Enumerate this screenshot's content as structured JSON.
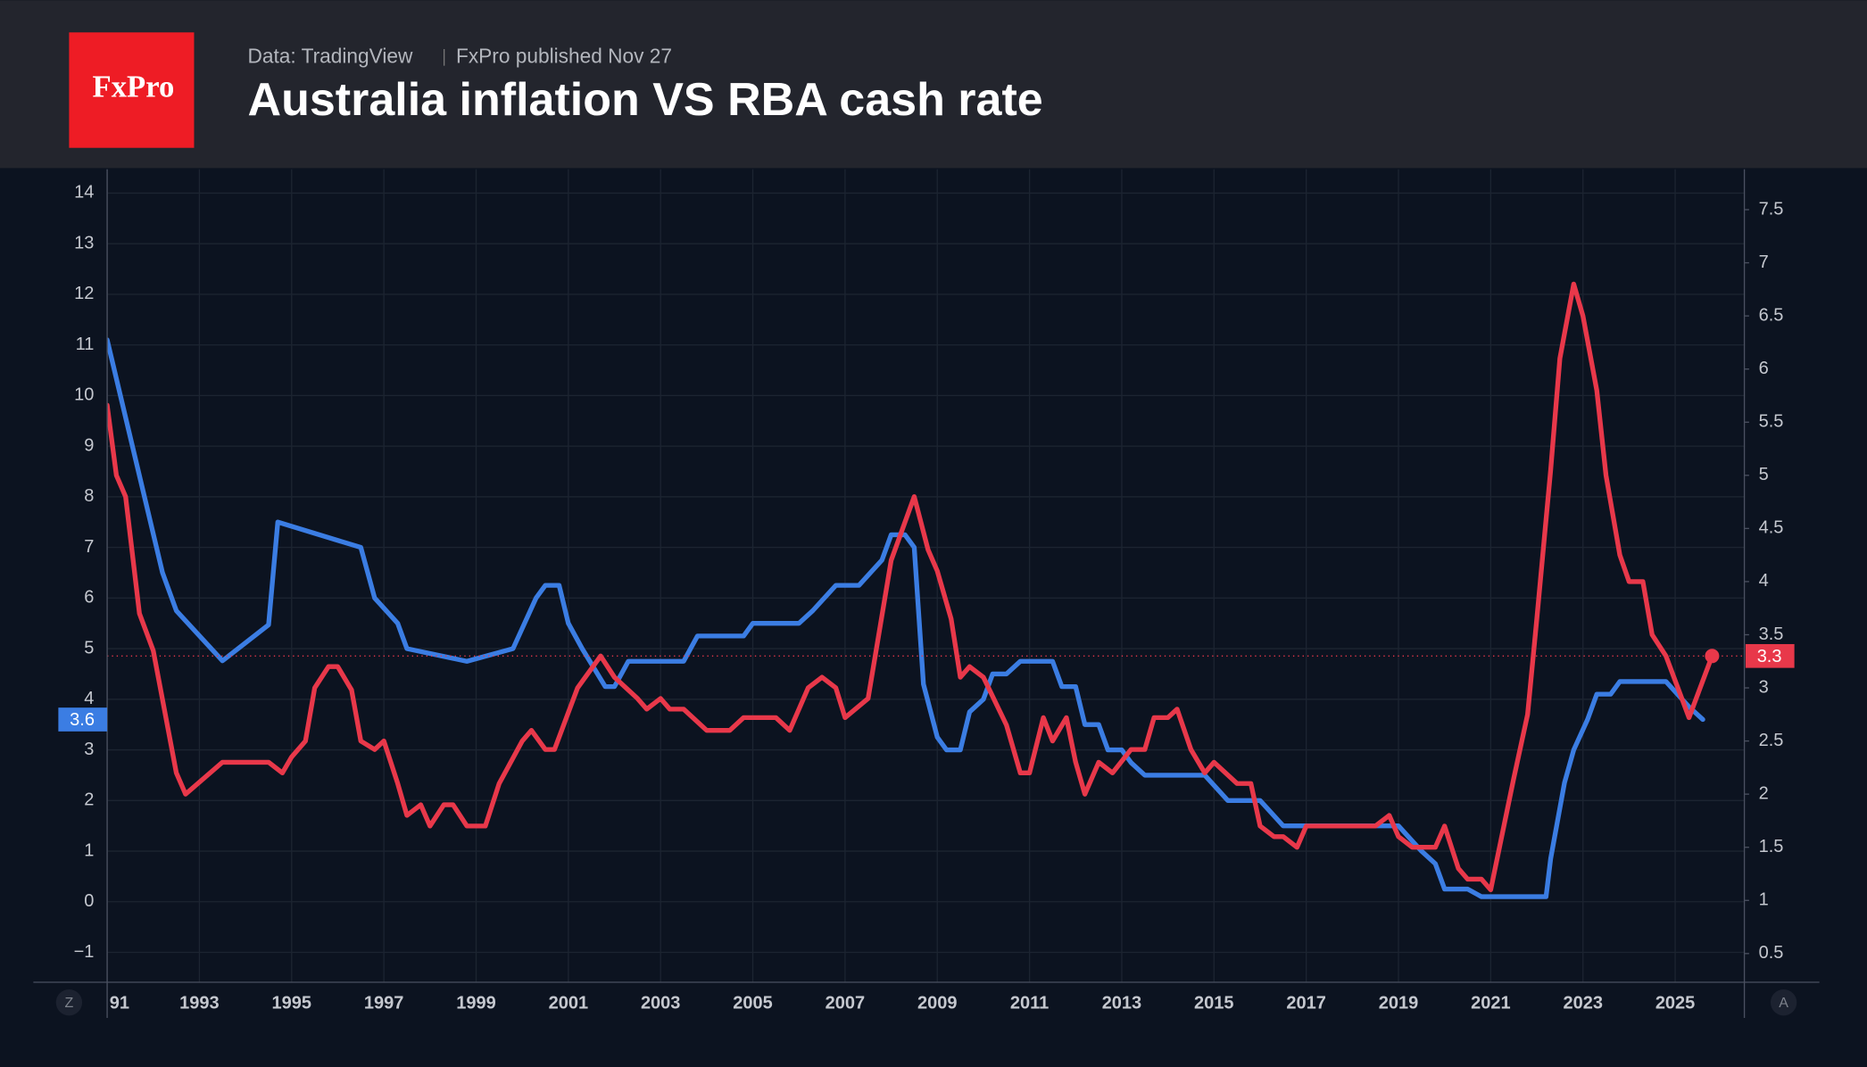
{
  "chart_data": {
    "type": "line",
    "logo": "FxPro",
    "source": "Data: TradingView",
    "subtitle": "FxPro published Nov 27",
    "title": "Australia inflation VS RBA cash rate",
    "scale_buttons": [
      "Z",
      "A"
    ],
    "grid": true,
    "xlim": [
      1991,
      2026.5
    ],
    "xticks": [
      {
        "value": 1991,
        "label": "91"
      },
      1993,
      1995,
      1997,
      1999,
      2001,
      2003,
      2005,
      2007,
      2009,
      2011,
      2013,
      2015,
      2017,
      2019,
      2021,
      2023,
      2025
    ],
    "ylim": [
      -1.59,
      14.47
    ],
    "yticks": [
      {
        "value": -1,
        "label": "−1"
      },
      0,
      1,
      2,
      3,
      4,
      5,
      6,
      7,
      8,
      9,
      10,
      11,
      12,
      13,
      14
    ],
    "y2lim": [
      0.23,
      7.88
    ],
    "y2ticks": [
      0.5,
      1,
      1.5,
      2,
      2.5,
      3,
      3.5,
      4,
      4.5,
      5,
      5.5,
      6,
      6.5,
      7,
      7.5
    ],
    "series": [
      {
        "color": "#3b7de3",
        "x": [
          1991.0,
          1992.2,
          1992.5,
          1993.5,
          1994.5,
          1994.7,
          1996.5,
          1996.8,
          1997.3,
          1997.5,
          1998.8,
          1999.8,
          2000.3,
          2000.5,
          2000.8,
          2001.0,
          2001.3,
          2001.8,
          2002.0,
          2002.3,
          2003.5,
          2003.8,
          2004.8,
          2005.0,
          2006.0,
          2006.3,
          2006.8,
          2007.3,
          2007.8,
          2008.0,
          2008.3,
          2008.5,
          2008.7,
          2009.0,
          2009.2,
          2009.5,
          2009.7,
          2010.0,
          2010.2,
          2010.5,
          2010.8,
          2011.5,
          2011.7,
          2012.0,
          2012.2,
          2012.5,
          2012.7,
          2013.0,
          2013.2,
          2013.5,
          2014.8,
          2015.3,
          2016.0,
          2016.5,
          2019.0,
          2019.5,
          2019.8,
          2020.0,
          2020.5,
          2020.8,
          2022.2,
          2022.3,
          2022.6,
          2022.8,
          2023.1,
          2023.3,
          2023.6,
          2023.8,
          2024.8,
          2025.3,
          2025.6
        ],
        "values": [
          11.1,
          6.5,
          5.75,
          4.76,
          5.47,
          7.5,
          7.0,
          6.0,
          5.5,
          5.0,
          4.75,
          5.0,
          6.0,
          6.25,
          6.25,
          5.5,
          5.0,
          4.25,
          4.25,
          4.75,
          4.75,
          5.25,
          5.25,
          5.5,
          5.5,
          5.75,
          6.25,
          6.25,
          6.75,
          7.25,
          7.25,
          7.0,
          4.3,
          3.25,
          3.0,
          3.0,
          3.75,
          4.0,
          4.5,
          4.5,
          4.75,
          4.75,
          4.25,
          4.25,
          3.5,
          3.5,
          3.0,
          3.0,
          2.75,
          2.5,
          2.5,
          2.0,
          2.0,
          1.5,
          1.5,
          1.0,
          0.75,
          0.25,
          0.25,
          0.1,
          0.1,
          0.85,
          2.35,
          3.0,
          3.6,
          4.1,
          4.1,
          4.35,
          4.35,
          3.85,
          3.6
        ]
      },
      {
        "color": "#e8384a",
        "axis": "y2",
        "x": [
          1991.0,
          1991.2,
          1991.4,
          1991.7,
          1992.0,
          1992.5,
          1992.7,
          1993.5,
          1994.5,
          1994.8,
          1995.0,
          1995.3,
          1995.5,
          1995.8,
          1996.0,
          1996.3,
          1996.5,
          1996.8,
          1997.0,
          1997.3,
          1997.5,
          1997.8,
          1998.0,
          1998.3,
          1998.5,
          1998.8,
          1999.2,
          1999.5,
          2000.0,
          2000.2,
          2000.5,
          2000.7,
          2001.2,
          2001.7,
          2002.0,
          2002.5,
          2002.7,
          2003.0,
          2003.2,
          2003.5,
          2004.0,
          2004.5,
          2004.8,
          2005.5,
          2005.8,
          2006.2,
          2006.5,
          2006.8,
          2007.0,
          2007.5,
          2008.0,
          2008.5,
          2008.8,
          2009.0,
          2009.3,
          2009.5,
          2009.7,
          2010.0,
          2010.5,
          2010.8,
          2011.0,
          2011.3,
          2011.5,
          2011.8,
          2012.0,
          2012.2,
          2012.5,
          2012.8,
          2013.2,
          2013.5,
          2013.7,
          2014.0,
          2014.2,
          2014.5,
          2014.8,
          2015.0,
          2015.5,
          2015.8,
          2016.0,
          2016.3,
          2016.5,
          2016.8,
          2017.0,
          2018.5,
          2018.8,
          2019.0,
          2019.3,
          2019.8,
          2020.0,
          2020.3,
          2020.5,
          2020.8,
          2021.0,
          2021.5,
          2021.8,
          2022.0,
          2022.3,
          2022.5,
          2022.8,
          2023.0,
          2023.3,
          2023.5,
          2023.8,
          2024.0,
          2024.3,
          2024.5,
          2024.8,
          2025.3,
          2025.8
        ],
        "values": [
          5.66,
          5.0,
          4.8,
          3.7,
          3.35,
          2.2,
          2.0,
          2.3,
          2.3,
          2.2,
          2.35,
          2.5,
          3.0,
          3.2,
          3.2,
          2.98,
          2.5,
          2.42,
          2.5,
          2.1,
          1.8,
          1.9,
          1.7,
          1.9,
          1.9,
          1.7,
          1.7,
          2.1,
          2.5,
          2.6,
          2.42,
          2.42,
          3.0,
          3.3,
          3.1,
          2.9,
          2.8,
          2.9,
          2.8,
          2.8,
          2.6,
          2.6,
          2.72,
          2.72,
          2.6,
          3.0,
          3.1,
          3.0,
          2.72,
          2.9,
          4.2,
          4.8,
          4.3,
          4.1,
          3.65,
          3.1,
          3.2,
          3.1,
          2.65,
          2.2,
          2.2,
          2.72,
          2.5,
          2.72,
          2.3,
          2.0,
          2.3,
          2.2,
          2.42,
          2.42,
          2.72,
          2.72,
          2.8,
          2.42,
          2.2,
          2.3,
          2.1,
          2.1,
          1.7,
          1.6,
          1.6,
          1.5,
          1.7,
          1.7,
          1.8,
          1.6,
          1.5,
          1.5,
          1.7,
          1.3,
          1.2,
          1.2,
          1.1,
          2.15,
          2.75,
          3.65,
          5.05,
          6.1,
          6.8,
          6.5,
          5.8,
          5.0,
          4.25,
          4.0,
          4.0,
          3.5,
          3.3,
          2.72,
          3.3
        ]
      }
    ]
  }
}
